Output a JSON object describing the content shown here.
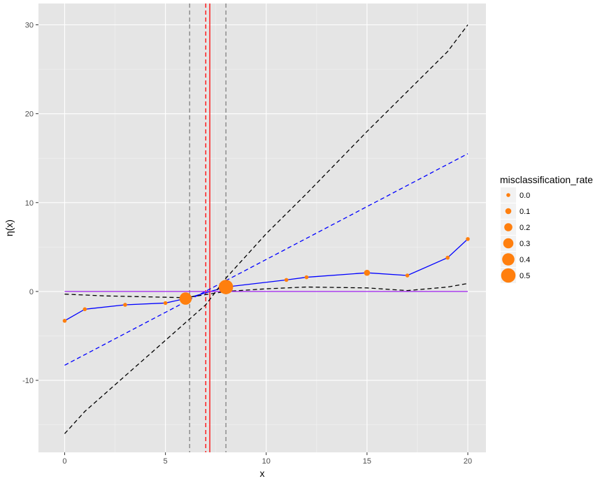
{
  "chart_data": {
    "type": "line",
    "xlabel": "x",
    "ylabel": "η(x)",
    "xlim": [
      -1.3,
      20.9
    ],
    "ylim": [
      -18.1,
      32.4
    ],
    "x_ticks": [
      0,
      5,
      10,
      15,
      20
    ],
    "y_ticks": [
      -10,
      0,
      10,
      20,
      30
    ],
    "x_tick_labels": [
      "0",
      "5",
      "10",
      "15",
      "20"
    ],
    "y_tick_labels": [
      "-10",
      "0",
      "10",
      "20",
      "30"
    ],
    "grid": true,
    "series": [
      {
        "style": "solid-line-with-points",
        "color": "#0000ff",
        "point_color": "#ff7f0e",
        "x": [
          0,
          1,
          3,
          5,
          6,
          8,
          11,
          12,
          15,
          17,
          19,
          20
        ],
        "y": [
          -3.3,
          -2.0,
          -1.5,
          -1.3,
          -0.8,
          0.5,
          1.3,
          1.6,
          2.1,
          1.8,
          3.8,
          5.9
        ],
        "misclassification_rate": [
          0.0,
          0.0,
          0.0,
          0.0,
          0.4,
          0.5,
          0.0,
          0.0,
          0.1,
          0.0,
          0.0,
          0.0
        ]
      },
      {
        "style": "dashed",
        "color": "#0000ff",
        "x": [
          0,
          20
        ],
        "y": [
          -8.3,
          15.5
        ]
      },
      {
        "style": "dashed",
        "color": "#000000",
        "x": [
          0,
          1,
          5,
          7,
          8,
          10,
          12,
          15,
          17,
          19,
          20
        ],
        "y": [
          -16.0,
          -13.5,
          -5.5,
          -1.5,
          1.5,
          6.5,
          11.0,
          18.0,
          22.5,
          27.0,
          30.0
        ]
      },
      {
        "style": "dashed",
        "color": "#000000",
        "x": [
          0,
          2,
          4,
          6,
          8,
          10,
          12,
          15,
          17,
          19,
          20
        ],
        "y": [
          -0.3,
          -0.5,
          -0.6,
          -0.7,
          0.0,
          0.3,
          0.5,
          0.4,
          0.1,
          0.5,
          0.9
        ]
      },
      {
        "style": "solid",
        "color": "#a020f0",
        "x": [
          0,
          20
        ],
        "y": [
          0,
          0
        ]
      }
    ],
    "vlines": [
      {
        "x": 7.2,
        "color": "#ff0000",
        "style": "solid"
      },
      {
        "x": 7.0,
        "color": "#ff0000",
        "style": "dashed"
      },
      {
        "x": 6.2,
        "color": "#808080",
        "style": "dashed"
      },
      {
        "x": 8.0,
        "color": "#808080",
        "style": "dashed"
      }
    ],
    "legend": {
      "title": "misclassification_rate",
      "placement": "right",
      "color": "#ff7f0e",
      "entries": [
        {
          "label": "0.0",
          "value": 0.0
        },
        {
          "label": "0.1",
          "value": 0.1
        },
        {
          "label": "0.2",
          "value": 0.2
        },
        {
          "label": "0.3",
          "value": 0.3
        },
        {
          "label": "0.4",
          "value": 0.4
        },
        {
          "label": "0.5",
          "value": 0.5
        }
      ]
    }
  }
}
